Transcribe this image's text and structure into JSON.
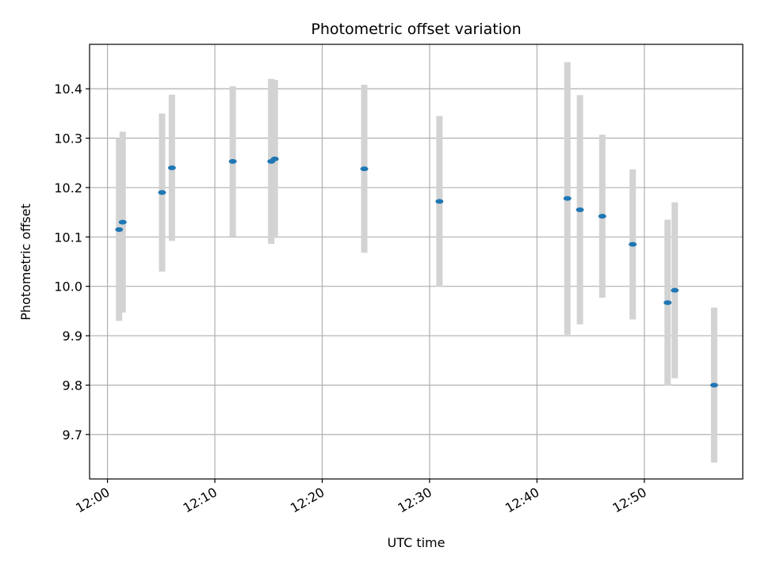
{
  "chart_data": {
    "type": "scatter",
    "title": "Photometric offset variation",
    "xlabel": "UTC time",
    "ylabel": "Photometric offset",
    "x_unit": "time",
    "xlim": [
      "11:58:20",
      "12:59:10"
    ],
    "ylim": [
      9.61,
      10.49
    ],
    "x_ticks": [
      "12:00",
      "12:10",
      "12:20",
      "12:30",
      "12:40",
      "12:50"
    ],
    "x_tick_values": [
      "12:00:00",
      "12:10:00",
      "12:20:00",
      "12:30:00",
      "12:40:00",
      "12:50:00"
    ],
    "y_ticks": [
      "9.7",
      "9.8",
      "9.9",
      "10.0",
      "10.1",
      "10.2",
      "10.3",
      "10.4"
    ],
    "y_tick_values": [
      9.7,
      9.8,
      9.9,
      10.0,
      10.1,
      10.2,
      10.3,
      10.4
    ],
    "grid": true,
    "marker_color": "#1f77b4",
    "errorbar_color": "#d3d3d3",
    "points": [
      {
        "t": "12:01:05",
        "y": 10.115,
        "err": 0.185
      },
      {
        "t": "12:01:25",
        "y": 10.13,
        "err": 0.183
      },
      {
        "t": "12:05:05",
        "y": 10.19,
        "err": 0.16
      },
      {
        "t": "12:06:00",
        "y": 10.24,
        "err": 0.148
      },
      {
        "t": "12:11:40",
        "y": 10.253,
        "err": 0.152
      },
      {
        "t": "12:15:15",
        "y": 10.253,
        "err": 0.167
      },
      {
        "t": "12:15:35",
        "y": 10.258,
        "err": 0.16
      },
      {
        "t": "12:23:55",
        "y": 10.238,
        "err": 0.17
      },
      {
        "t": "12:30:55",
        "y": 10.172,
        "err": 0.173
      },
      {
        "t": "12:42:50",
        "y": 10.178,
        "err": 0.276
      },
      {
        "t": "12:44:00",
        "y": 10.155,
        "err": 0.232
      },
      {
        "t": "12:46:05",
        "y": 10.142,
        "err": 0.165
      },
      {
        "t": "12:48:55",
        "y": 10.085,
        "err": 0.152
      },
      {
        "t": "12:52:10",
        "y": 9.967,
        "err": 0.168
      },
      {
        "t": "12:52:50",
        "y": 9.992,
        "err": 0.178
      },
      {
        "t": "12:56:30",
        "y": 9.8,
        "err": 0.157
      }
    ]
  }
}
